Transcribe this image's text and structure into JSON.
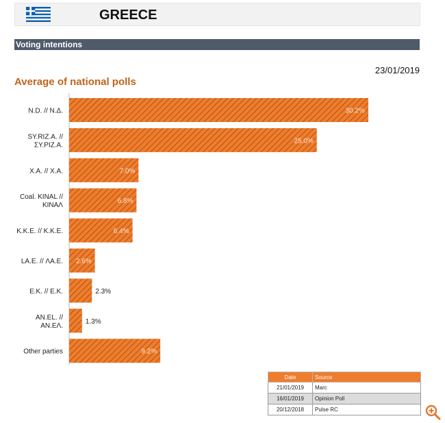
{
  "header": {
    "country": "GREECE"
  },
  "section": {
    "title": "Voting intentions"
  },
  "date": "23/01/2019",
  "colors": {
    "bar": "#ee7d2e",
    "hatch": "#b4520d",
    "accent_text": "#c0641a",
    "section_bar": "#4f5b6b"
  },
  "icons": {
    "flag": "greece-flag-icon",
    "zoom": "zoom-in-icon"
  },
  "chart_data": {
    "type": "bar",
    "orientation": "horizontal",
    "title": "Average of national polls",
    "categories": [
      [
        "N.D. // N.Δ."
      ],
      [
        "SY.RIZ.A. //",
        "ΣΥ.ΡΙΖ.Α."
      ],
      [
        "X.A. // X.A."
      ],
      [
        "Coal. KINAL //",
        "ΚΙΝΑΛ"
      ],
      [
        "K.K.E. // K.K.E."
      ],
      [
        "LA.E. // ΛΑ.Ε."
      ],
      [
        "E.K. // E.K."
      ],
      [
        "AN.EL. //",
        "AN.EΛ."
      ],
      [
        "Other parties"
      ]
    ],
    "values": [
      30.2,
      25.0,
      7.0,
      6.8,
      6.4,
      2.6,
      2.3,
      1.3,
      9.2
    ],
    "value_labels": [
      "30.2%",
      "25.0%",
      "7.0%",
      "6.8%",
      "6.4%",
      "2.6%",
      "2.3%",
      "1.3%",
      "9.2%"
    ],
    "label_inside": [
      true,
      true,
      true,
      true,
      true,
      true,
      false,
      false,
      true
    ],
    "hatched": true
  },
  "sources": {
    "headers": [
      "Date",
      "Source"
    ],
    "rows": [
      {
        "date": "21/01/2019",
        "source": "Marc"
      },
      {
        "date": "16/01/2019",
        "source": "Opinion Poll"
      },
      {
        "date": "20/12/2018",
        "source": "Pulse RC"
      }
    ]
  }
}
